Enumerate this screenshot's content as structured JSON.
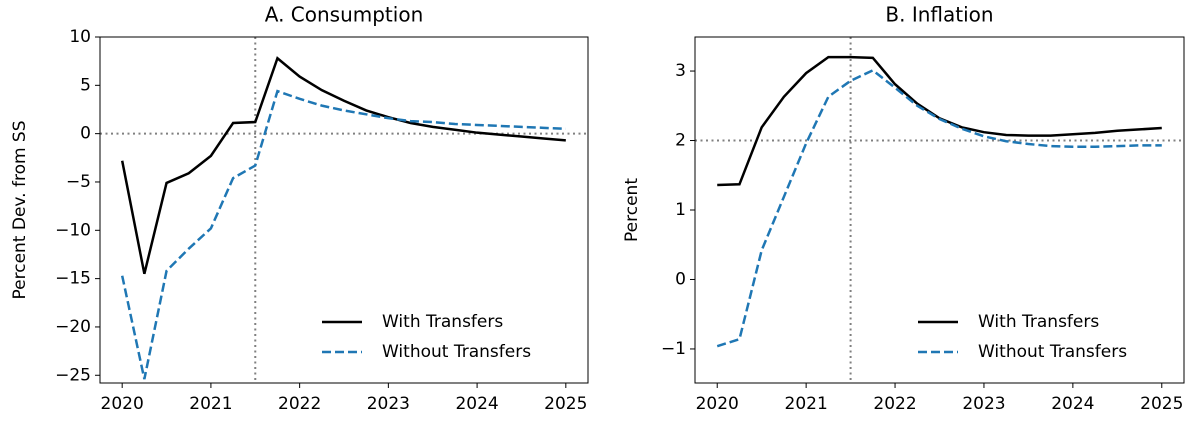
{
  "chart_data": [
    {
      "type": "line",
      "title": "A. Consumption",
      "ylabel": "Percent Dev. from SS",
      "x": [
        2020,
        2020.25,
        2020.5,
        2020.75,
        2021,
        2021.25,
        2021.5,
        2021.75,
        2022,
        2022.25,
        2022.5,
        2022.75,
        2023,
        2023.25,
        2023.5,
        2023.75,
        2024,
        2024.25,
        2024.5,
        2024.75,
        2025
      ],
      "series": [
        {
          "name": "With Transfers",
          "color": "#000000",
          "dash": false,
          "values": [
            -2.8,
            -14.5,
            -5.1,
            -4.1,
            -2.3,
            1.1,
            1.2,
            7.8,
            5.9,
            4.5,
            3.4,
            2.4,
            1.7,
            1.1,
            0.7,
            0.4,
            0.1,
            -0.1,
            -0.3,
            -0.5,
            -0.7
          ]
        },
        {
          "name": "Without Transfers",
          "color": "#1f77b4",
          "dash": true,
          "values": [
            -14.7,
            -25.4,
            -14.2,
            -11.9,
            -9.8,
            -4.6,
            -3.3,
            4.4,
            3.6,
            2.9,
            2.4,
            2.0,
            1.6,
            1.3,
            1.2,
            1.0,
            0.9,
            0.8,
            0.7,
            0.6,
            0.5
          ]
        }
      ],
      "xlim": [
        2019.75,
        2025.25
      ],
      "xticks": [
        2020,
        2021,
        2022,
        2023,
        2024,
        2025
      ],
      "ylim": [
        -25.8,
        10
      ],
      "yticks": [
        {
          "value": -25,
          "label": "−25"
        },
        {
          "value": -20,
          "label": "−20"
        },
        {
          "value": -15,
          "label": "−15"
        },
        {
          "value": -10,
          "label": "−10"
        },
        {
          "value": -5,
          "label": "−5"
        },
        0,
        5,
        10
      ],
      "reference_lines": {
        "x": 2021.5,
        "y": 0
      },
      "legend": "lower right"
    },
    {
      "type": "line",
      "title": "B. Inflation",
      "ylabel": "Percent",
      "x": [
        2020,
        2020.25,
        2020.5,
        2020.75,
        2021,
        2021.25,
        2021.5,
        2021.75,
        2022,
        2022.25,
        2022.5,
        2022.75,
        2023,
        2023.25,
        2023.5,
        2023.75,
        2024,
        2024.25,
        2024.5,
        2024.75,
        2025
      ],
      "series": [
        {
          "name": "With Transfers",
          "color": "#000000",
          "dash": false,
          "values": [
            1.36,
            1.37,
            2.19,
            2.63,
            2.97,
            3.2,
            3.2,
            3.19,
            2.81,
            2.53,
            2.32,
            2.19,
            2.12,
            2.08,
            2.07,
            2.07,
            2.09,
            2.11,
            2.14,
            2.16,
            2.18
          ]
        },
        {
          "name": "Without Transfers",
          "color": "#1f77b4",
          "dash": true,
          "values": [
            -0.96,
            -0.86,
            0.42,
            1.19,
            1.96,
            2.63,
            2.86,
            3.01,
            2.76,
            2.5,
            2.31,
            2.17,
            2.06,
            1.99,
            1.95,
            1.92,
            1.91,
            1.91,
            1.92,
            1.93,
            1.93
          ]
        }
      ],
      "xlim": [
        2019.75,
        2025.25
      ],
      "xticks": [
        2020,
        2021,
        2022,
        2023,
        2024,
        2025
      ],
      "ylim": [
        -1.49,
        3.49
      ],
      "yticks": [
        {
          "value": -1,
          "label": "−1"
        },
        0,
        1,
        2,
        3
      ],
      "reference_lines": {
        "x": 2021.5,
        "y": 2
      },
      "legend": "lower right"
    }
  ]
}
